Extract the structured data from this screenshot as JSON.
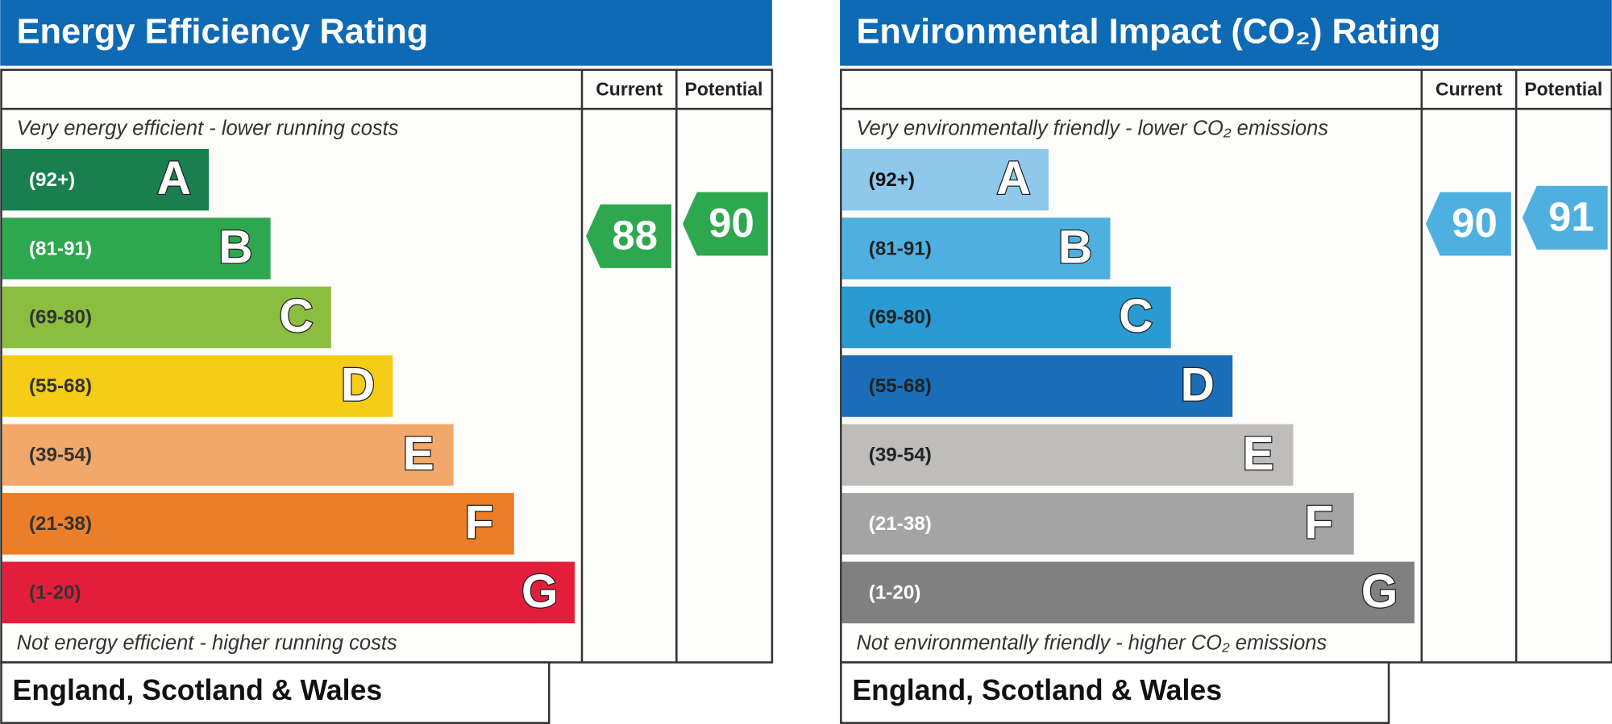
{
  "panels": [
    {
      "title": "Energy Efficiency Rating",
      "columns": [
        "Current",
        "Potential"
      ],
      "top_note": "Very energy efficient - lower running costs",
      "bottom_note": "Not energy efficient - higher running costs",
      "bands": [
        {
          "range": "(92+)",
          "letter": "A",
          "color": "#1a7f4f",
          "text_color": "#ffffff"
        },
        {
          "range": "(81-91)",
          "letter": "B",
          "color": "#2ea84e",
          "text_color": "#ffffff"
        },
        {
          "range": "(69-80)",
          "letter": "C",
          "color": "#8bbe3f",
          "text_color": "#333333"
        },
        {
          "range": "(55-68)",
          "letter": "D",
          "color": "#f5cd17",
          "text_color": "#333333"
        },
        {
          "range": "(39-54)",
          "letter": "E",
          "color": "#f2a86a",
          "text_color": "#333333"
        },
        {
          "range": "(21-38)",
          "letter": "F",
          "color": "#ec7e27",
          "text_color": "#333333"
        },
        {
          "range": "(1-20)",
          "letter": "G",
          "color": "#e21e3b",
          "text_color": "#333333"
        }
      ],
      "current": 88,
      "current_color": "#2ea84e",
      "potential": 90,
      "potential_color": "#2ea84e",
      "region": "England, Scotland & Wales"
    },
    {
      "title": "Environmental Impact (CO₂) Rating",
      "columns": [
        "Current",
        "Potential"
      ],
      "top_note": "Very environmentally friendly - lower CO₂ emissions",
      "bottom_note": "Not environmentally friendly - higher CO₂ emissions",
      "bands": [
        {
          "range": "(92+)",
          "letter": "A",
          "color": "#8ec9ec",
          "text_color": "#111111"
        },
        {
          "range": "(81-91)",
          "letter": "B",
          "color": "#4eb0e0",
          "text_color": "#222222"
        },
        {
          "range": "(69-80)",
          "letter": "C",
          "color": "#2a9ad3",
          "text_color": "#222222"
        },
        {
          "range": "(55-68)",
          "letter": "D",
          "color": "#1a6eb8",
          "text_color": "#222222"
        },
        {
          "range": "(39-54)",
          "letter": "E",
          "color": "#bebdbb",
          "text_color": "#222222"
        },
        {
          "range": "(21-38)",
          "letter": "F",
          "color": "#a4a4a4",
          "text_color": "#ffffff"
        },
        {
          "range": "(1-20)",
          "letter": "G",
          "color": "#808080",
          "text_color": "#ffffff"
        }
      ],
      "current": 90,
      "current_color": "#4eb0e0",
      "potential": 91,
      "potential_color": "#4eb0e0",
      "region": "England, Scotland & Wales"
    }
  ]
}
